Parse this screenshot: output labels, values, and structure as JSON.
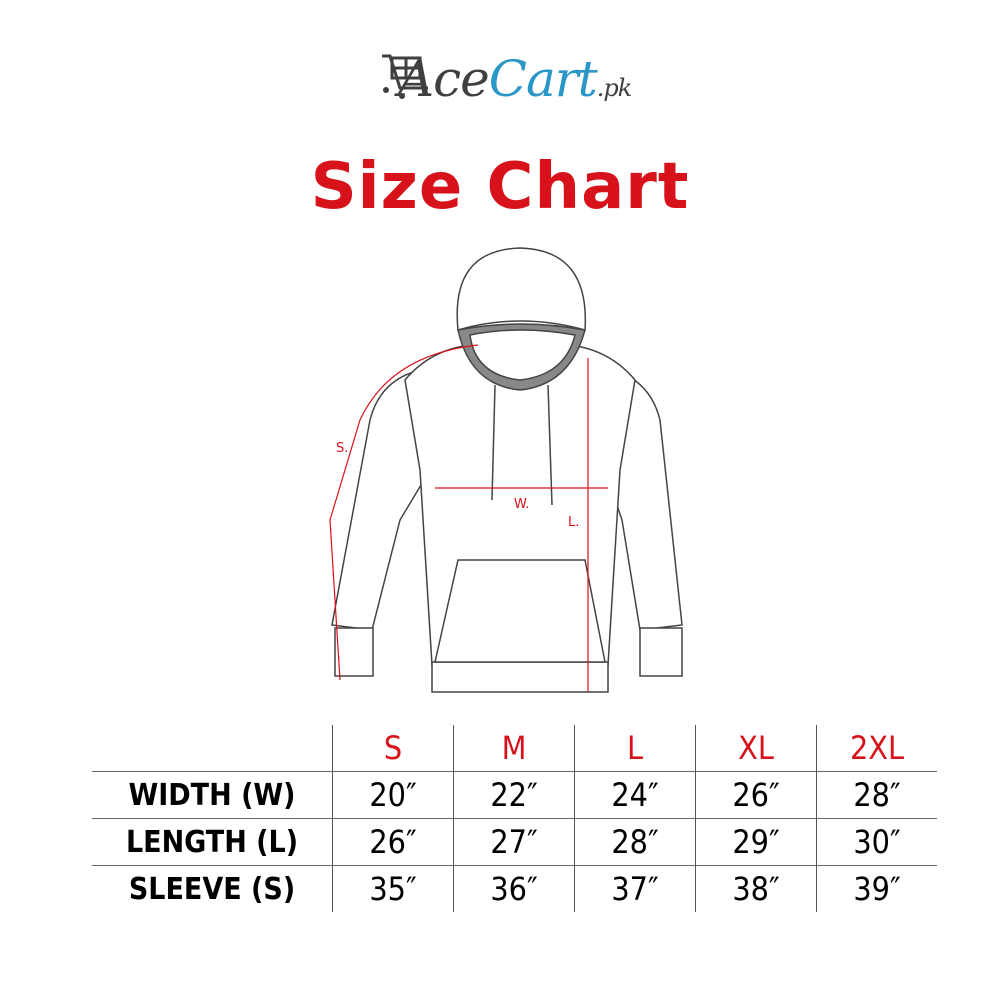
{
  "brand": {
    "logo_text": "AceCart.pk",
    "name_part1": "Ace",
    "name_part2": "Cart",
    "suffix": ".pk",
    "icon": "shopping-cart-icon",
    "colors": {
      "dark": "#3f3f3f",
      "blue": "#2b97c7"
    }
  },
  "title": "Size Chart",
  "accent_color": "#d7121b",
  "diagram": {
    "labels": {
      "sleeve": "S.",
      "width": "W.",
      "length": "L."
    }
  },
  "table": {
    "sizes": [
      "S",
      "M",
      "L",
      "XL",
      "2XL"
    ],
    "rows": [
      {
        "label": "WIDTH (W)",
        "values": [
          "20″",
          "22″",
          "24″",
          "26″",
          "28″"
        ]
      },
      {
        "label": "LENGTH (L)",
        "values": [
          "26″",
          "27″",
          "28″",
          "29″",
          "30″"
        ]
      },
      {
        "label": "SLEEVE (S)",
        "values": [
          "35″",
          "36″",
          "37″",
          "38″",
          "39″"
        ]
      }
    ]
  }
}
